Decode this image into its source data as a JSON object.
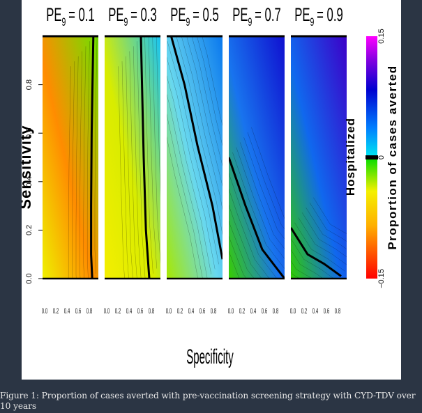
{
  "caption": "Figure 1: Proportion of cases averted with pre-vaccination screening strategy with CYD-TDV over 10 years",
  "chart_data": {
    "type": "heatmap",
    "xlabel": "Specificity",
    "ylabel": "Sensitivity",
    "outcome_label": "Hospitalized",
    "colorbar_label": "Proportion of cases averted",
    "colorbar_range": [
      -0.15,
      0.15
    ],
    "colorbar_ticks": [
      "−0.15",
      "0",
      "0.15"
    ],
    "x_range": [
      0,
      1
    ],
    "y_range": [
      0,
      1
    ],
    "x_ticks": [
      "0.0",
      "0.2",
      "0.4",
      "0.6",
      "0.8"
    ],
    "y_ticks": [
      "0.0",
      "0.2",
      "0.4",
      "0.6",
      "0.8"
    ],
    "panels": [
      {
        "title_base": "PE",
        "title_sub": "9",
        "title_value": "= 0.1",
        "zero_contour": [
          [
            0.89,
            0
          ],
          [
            0.87,
            0.1
          ],
          [
            0.87,
            0.3
          ],
          [
            0.88,
            0.6
          ],
          [
            0.91,
            1.0
          ]
        ],
        "color_corners": {
          "top_left": "#ff8c00",
          "bottom_left": "#eef000",
          "right": "#6fe000"
        }
      },
      {
        "title_base": "PE",
        "title_sub": "9",
        "title_value": "= 0.3",
        "zero_contour": [
          [
            0.8,
            0
          ],
          [
            0.74,
            0.2
          ],
          [
            0.7,
            0.5
          ],
          [
            0.67,
            0.8
          ],
          [
            0.65,
            1.0
          ]
        ],
        "color_corners": {
          "top_left": "#d8ec00",
          "bottom_left": "#f4ee00",
          "right": "#18c4f5"
        }
      },
      {
        "title_base": "PE",
        "title_sub": "9",
        "title_value": "= 0.5",
        "zero_contour": [
          [
            1.0,
            0.08
          ],
          [
            0.82,
            0.3
          ],
          [
            0.55,
            0.55
          ],
          [
            0.32,
            0.8
          ],
          [
            0.08,
            1.0
          ]
        ],
        "color_corners": {
          "top_left": "#68d8ef",
          "bottom_left": "#a8e800",
          "right": "#0a78ee"
        }
      },
      {
        "title_base": "PE",
        "title_sub": "9",
        "title_value": "= 0.7",
        "zero_contour": [
          [
            0,
            0.5
          ],
          [
            0.3,
            0.3
          ],
          [
            0.6,
            0.12
          ],
          [
            1.0,
            0
          ]
        ],
        "color_corners": {
          "top_left": "#1874ee",
          "bottom_left": "#38ce00",
          "right": "#1010d0"
        }
      },
      {
        "title_base": "PE",
        "title_sub": "9",
        "title_value": "= 0.9",
        "zero_contour": [
          [
            0,
            0.21
          ],
          [
            0.3,
            0.1
          ],
          [
            0.6,
            0.06
          ],
          [
            0.9,
            0.01
          ]
        ],
        "color_corners": {
          "top_left": "#1068ee",
          "bottom_left": "#30cc00",
          "right": "#3c00c8"
        }
      }
    ],
    "legend": "right",
    "grid": false
  }
}
